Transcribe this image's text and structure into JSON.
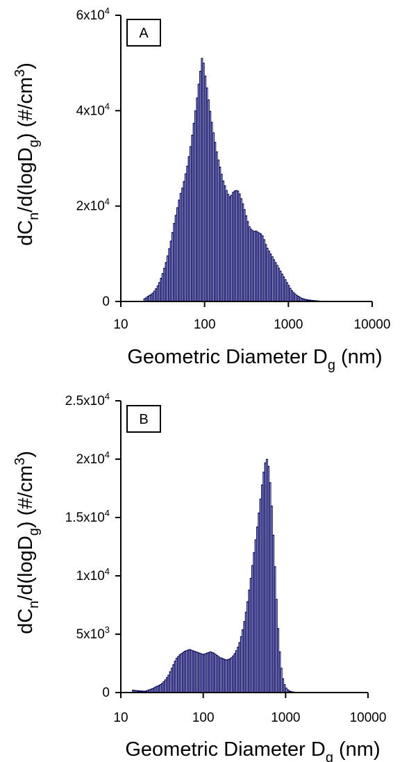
{
  "chart_data": [
    {
      "type": "bar",
      "panel_label": "A",
      "xscale": "log",
      "xlim": [
        10,
        10000
      ],
      "ylim": [
        0,
        60000
      ],
      "xticks": [
        {
          "v": 10,
          "label": "10"
        },
        {
          "v": 100,
          "label": "100"
        },
        {
          "v": 1000,
          "label": "1000"
        },
        {
          "v": 10000,
          "label": "10000"
        }
      ],
      "yticks": [
        {
          "v": 0,
          "base": "0",
          "exp": ""
        },
        {
          "v": 20000,
          "base": "2x10",
          "exp": "4"
        },
        {
          "v": 40000,
          "base": "4x10",
          "exp": "4"
        },
        {
          "v": 60000,
          "base": "6x10",
          "exp": "4"
        }
      ],
      "bar_color": "#000080",
      "bar_edge": "#00003a",
      "x": [
        19.2,
        20.1,
        21.0,
        22.0,
        23.0,
        24.1,
        25.2,
        26.4,
        27.6,
        28.9,
        30.2,
        31.6,
        33.1,
        34.6,
        36.2,
        37.9,
        39.6,
        41.4,
        43.3,
        45.3,
        47.4,
        49.6,
        51.9,
        54.3,
        56.8,
        59.4,
        62.1,
        65.0,
        68.0,
        71.1,
        74.4,
        77.8,
        81.4,
        85.1,
        89.0,
        93.1,
        97.4,
        101.9,
        106.6,
        111.5,
        116.6,
        122.0,
        127.6,
        133.5,
        139.6,
        146.0,
        152.7,
        159.7,
        167.1,
        174.8,
        182.8,
        191.2,
        200.0,
        209.2,
        218.8,
        228.9,
        239.4,
        250.4,
        261.9,
        273.9,
        286.5,
        299.7,
        313.5,
        327.9,
        343.0,
        358.8,
        375.3,
        392.6,
        410.6,
        429.5,
        449.2,
        469.9,
        491.5,
        514.1,
        537.7,
        562.4,
        588.3,
        615.3,
        643.6,
        673.2,
        704.2,
        736.6,
        770.5,
        805.9,
        843.0,
        881.7,
        922.3,
        964.7,
        1009.1,
        1055.5,
        1104.0,
        1154.8,
        1207.9,
        1263.5,
        1321.6,
        1382.4,
        1446.0,
        1512.5,
        1582.1,
        1654.8,
        1730.9,
        1810.5,
        1893.8,
        1980.9,
        2072.0,
        2167.3,
        2267.0,
        2371.3,
        2480.4,
        2594.5,
        2713.8,
        2838.6
      ],
      "values": [
        600,
        800,
        1100,
        1300,
        1500,
        1800,
        2200,
        2700,
        3300,
        4000,
        4900,
        5900,
        7000,
        8200,
        9600,
        11100,
        12700,
        14500,
        16400,
        18100,
        19700,
        21300,
        22700,
        23800,
        25200,
        26800,
        28400,
        30400,
        32500,
        34900,
        37400,
        40000,
        42700,
        45600,
        48300,
        51000,
        50000,
        47300,
        44800,
        42300,
        39900,
        37600,
        35400,
        33400,
        31400,
        29700,
        28200,
        26700,
        25300,
        24300,
        23300,
        22500,
        22000,
        22300,
        22900,
        23200,
        23300,
        23200,
        22600,
        21600,
        20500,
        19300,
        18000,
        16800,
        15700,
        15200,
        14900,
        14700,
        14800,
        14600,
        14400,
        14200,
        13800,
        13000,
        12000,
        11200,
        10600,
        10000,
        9400,
        8800,
        8200,
        7600,
        7000,
        6400,
        5800,
        5200,
        4600,
        4000,
        3400,
        2800,
        2300,
        1900,
        1600,
        1300,
        1100,
        900,
        700,
        600,
        500,
        420,
        360,
        320,
        280,
        240,
        210,
        180,
        150,
        120,
        100,
        80,
        60,
        50
      ],
      "xlabel": {
        "main": "Geometric Diameter D",
        "sub": "g",
        "tail": " (nm)"
      },
      "ylabel": {
        "p1": "dC",
        "s1": "n",
        "p2": "/d(logD",
        "s2": "g",
        "p3": ") (#/cm",
        "sup": "3",
        "p4": ")"
      }
    },
    {
      "type": "bar",
      "panel_label": "B",
      "xscale": "log",
      "xlim": [
        10,
        10000
      ],
      "ylim": [
        0,
        25000
      ],
      "xticks": [
        {
          "v": 10,
          "label": "10"
        },
        {
          "v": 100,
          "label": "100"
        },
        {
          "v": 1000,
          "label": "1000"
        },
        {
          "v": 10000,
          "label": "10000"
        }
      ],
      "yticks": [
        {
          "v": 0,
          "base": "0",
          "exp": ""
        },
        {
          "v": 5000,
          "base": "5x10",
          "exp": "3"
        },
        {
          "v": 10000,
          "base": "1x10",
          "exp": "4"
        },
        {
          "v": 15000,
          "base": "1.5x10",
          "exp": "4"
        },
        {
          "v": 20000,
          "base": "2x10",
          "exp": "4"
        },
        {
          "v": 25000,
          "base": "2.5x10",
          "exp": "4"
        }
      ],
      "bar_color": "#000080",
      "bar_edge": "#00003a",
      "x": [
        14.1,
        14.8,
        15.5,
        16.2,
        16.9,
        17.7,
        18.5,
        19.4,
        20.2,
        21.2,
        22.2,
        23.2,
        24.3,
        25.4,
        26.5,
        27.7,
        29.0,
        30.4,
        31.8,
        33.2,
        34.8,
        36.4,
        38.0,
        39.8,
        41.6,
        43.5,
        45.5,
        47.6,
        49.9,
        52.1,
        54.6,
        57.1,
        59.7,
        62.4,
        65.3,
        68.4,
        71.5,
        74.8,
        78.2,
        81.8,
        85.6,
        89.6,
        93.7,
        98.0,
        102.5,
        107.2,
        112.1,
        117.3,
        122.7,
        128.4,
        134.3,
        140.5,
        146.9,
        153.7,
        160.8,
        168.2,
        175.9,
        184.0,
        192.5,
        201.3,
        210.6,
        220.3,
        230.5,
        241.1,
        252.2,
        263.8,
        275.9,
        288.6,
        301.9,
        315.8,
        330.4,
        345.6,
        361.5,
        378.2,
        395.6,
        413.8,
        432.9,
        452.8,
        473.6,
        495.4,
        518.2,
        542.1,
        567.1,
        593.2,
        620.5,
        649.1,
        679.0,
        710.2,
        742.9,
        777.1,
        812.9,
        850.4,
        889.6,
        930.5,
        973.4,
        1018.2,
        1065.1,
        1114.1,
        1165.4,
        1219.1,
        1275.2,
        1333.9,
        1395.3,
        1459.6,
        1526.8,
        1597.1,
        1670.6,
        1747.6,
        1828.0
      ],
      "values": [
        220,
        200,
        180,
        170,
        160,
        150,
        140,
        130,
        150,
        200,
        250,
        300,
        350,
        420,
        500,
        560,
        620,
        700,
        800,
        950,
        1100,
        1300,
        1500,
        1800,
        2100,
        2400,
        2700,
        2950,
        3100,
        3250,
        3350,
        3450,
        3550,
        3600,
        3650,
        3700,
        3650,
        3600,
        3550,
        3500,
        3450,
        3400,
        3350,
        3300,
        3300,
        3350,
        3400,
        3450,
        3500,
        3450,
        3400,
        3300,
        3200,
        3100,
        3000,
        2950,
        2900,
        2850,
        2800,
        2850,
        2900,
        3000,
        3150,
        3350,
        3600,
        3900,
        4300,
        4800,
        5400,
        6100,
        6900,
        7800,
        8800,
        9800,
        10900,
        12000,
        13100,
        14200,
        15400,
        16600,
        17800,
        18900,
        19700,
        20000,
        19400,
        18000,
        16000,
        13500,
        10800,
        8000,
        5500,
        3500,
        2100,
        1200,
        700,
        400,
        250,
        150,
        100,
        70,
        50,
        40,
        30,
        20,
        15,
        10,
        8,
        6,
        5
      ],
      "xlabel": {
        "main": "Geometric Diameter D",
        "sub": "g",
        "tail": " (nm)"
      },
      "ylabel": {
        "p1": "dC",
        "s1": "n",
        "p2": "/d(logD",
        "s2": "g",
        "p3": ") (#/cm",
        "sup": "3",
        "p4": ")"
      }
    }
  ]
}
